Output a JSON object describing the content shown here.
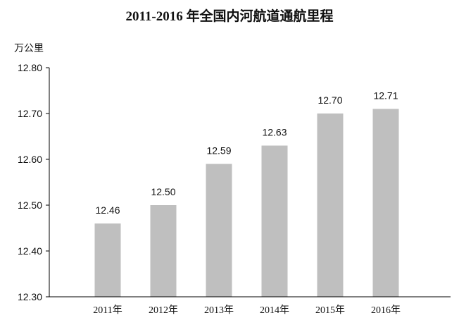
{
  "chart_data": {
    "type": "bar",
    "title": "2011-2016 年全国内河航道通航里程",
    "ylabel": "万公里",
    "xlabel": "",
    "categories": [
      "2011年",
      "2012年",
      "2013年",
      "2014年",
      "2015年",
      "2016年"
    ],
    "values": [
      12.46,
      12.5,
      12.59,
      12.63,
      12.7,
      12.71
    ],
    "data_labels": [
      "12.46",
      "12.50",
      "12.59",
      "12.63",
      "12.70",
      "12.71"
    ],
    "ylim": [
      12.3,
      12.8
    ],
    "yticks": [
      "12.30",
      "12.40",
      "12.50",
      "12.60",
      "12.70",
      "12.80"
    ],
    "grid": false,
    "legend": "none",
    "bar_color": "#bfbfbf",
    "axis_color": "#000000"
  }
}
